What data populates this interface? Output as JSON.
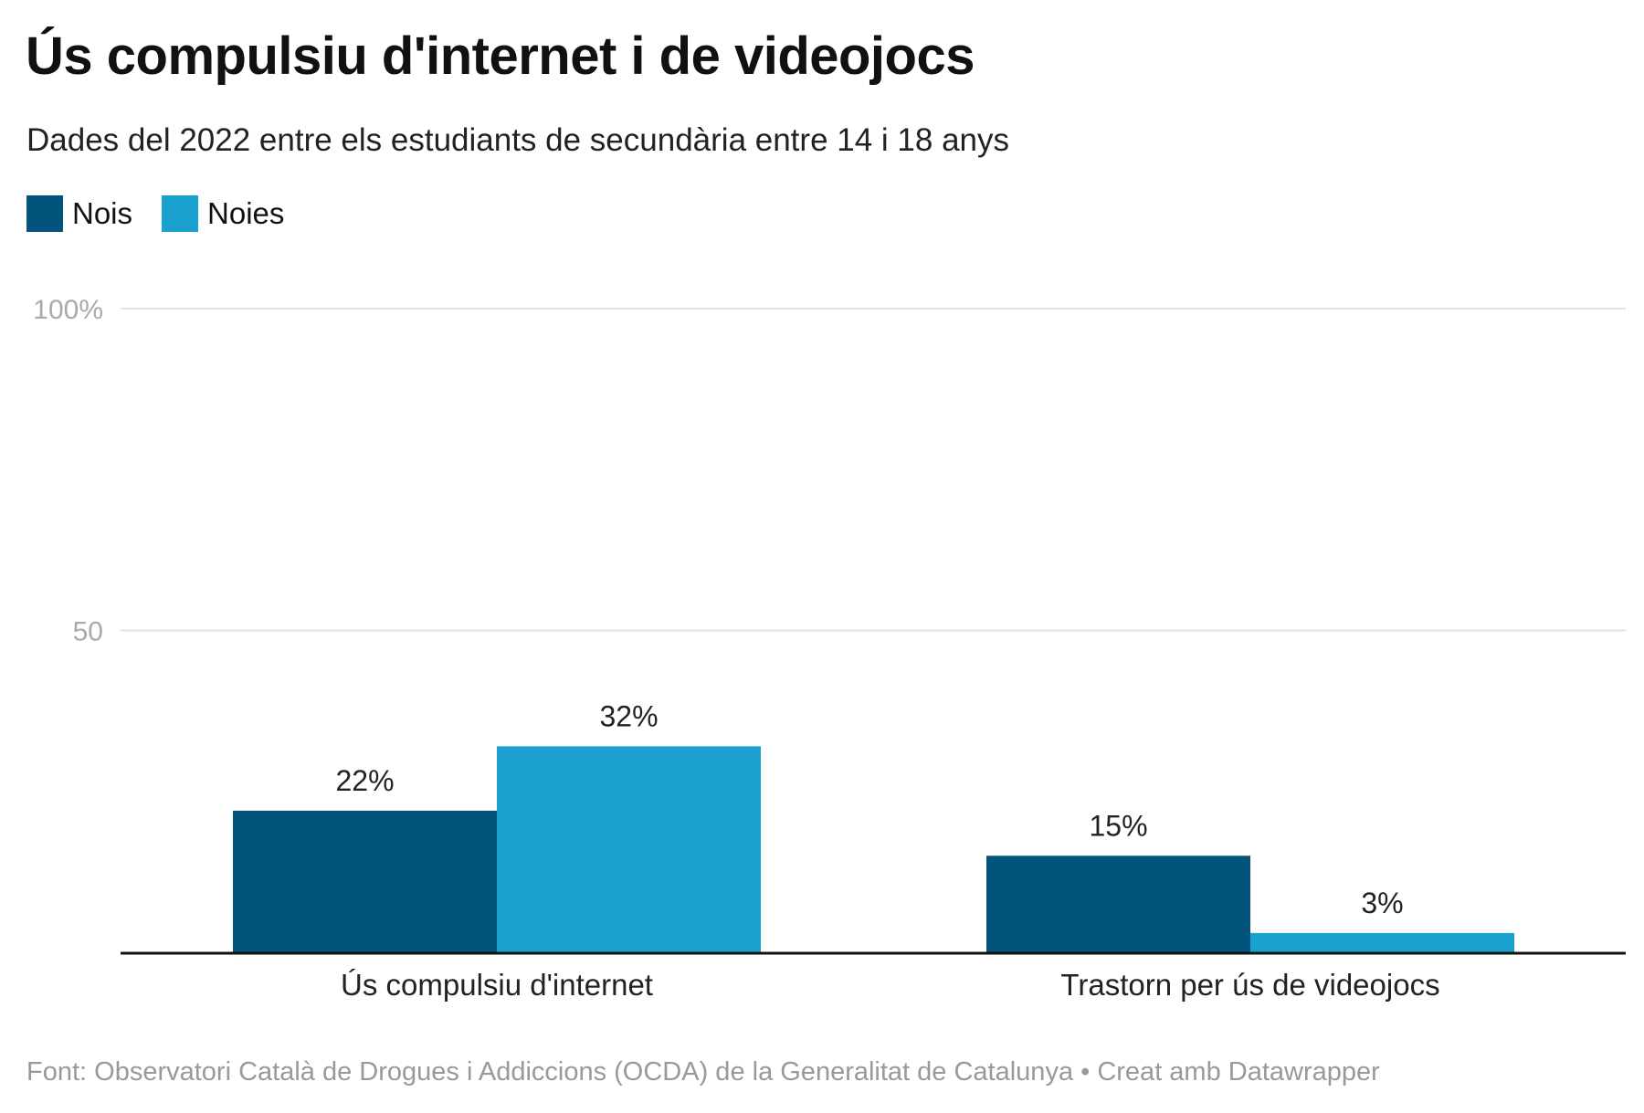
{
  "chart_data": {
    "type": "bar",
    "title": "Ús compulsiu d'internet i de videojocs",
    "subtitle": "Dades del 2022 entre els estudiants de secundària entre 14 i 18 anys",
    "categories": [
      "Ús compulsiu d'internet",
      "Trastorn per ús de videojocs"
    ],
    "series": [
      {
        "name": "Nois",
        "color": "#03547c",
        "values": [
          22,
          15
        ],
        "labels": [
          "22%",
          "15%"
        ]
      },
      {
        "name": "Noies",
        "color": "#1aa1cf",
        "values": [
          32,
          3
        ],
        "labels": [
          "32%",
          "3%"
        ]
      }
    ],
    "yticks": [
      {
        "value": 50,
        "label": "50"
      },
      {
        "value": 100,
        "label": "100%"
      }
    ],
    "ylim": [
      0,
      100
    ],
    "grid": true,
    "legend": "top-left",
    "xlabel": "",
    "ylabel": ""
  },
  "footer": "Font: Observatori Català de Drogues i Addiccions (OCDA) de la Generalitat de Catalunya • Creat amb Datawrapper"
}
